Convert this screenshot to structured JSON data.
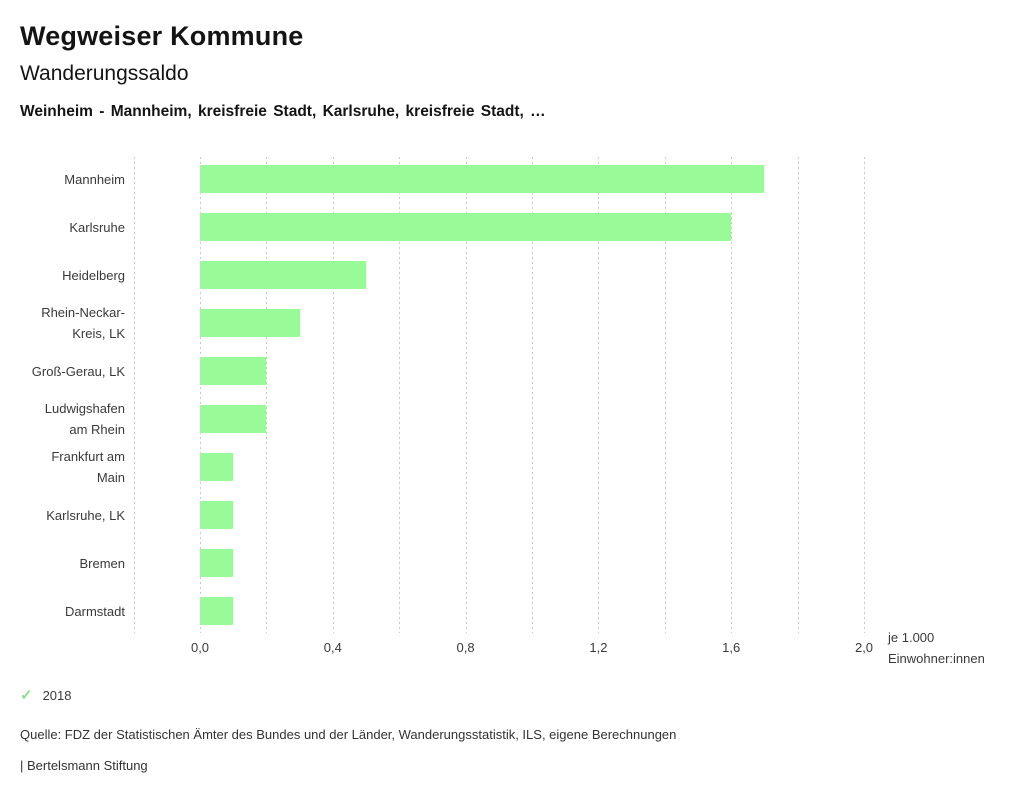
{
  "header": {
    "brand_title": "Wegweiser Kommune",
    "indicator_title": "Wanderungssaldo",
    "comparison_subtitle": "Weinheim - Mannheim, kreisfreie Stadt, Karlsruhe, kreisfreie Stadt, …"
  },
  "chart_data": {
    "type": "bar",
    "orientation": "horizontal",
    "title": "Wanderungssaldo",
    "categories": [
      "Mannheim",
      "Karlsruhe",
      "Heidelberg",
      "Rhein-Neckar-Kreis, LK",
      "Groß-Gerau, LK",
      "Ludwigshafen am Rhein",
      "Frankfurt am Main",
      "Karlsruhe, LK",
      "Bremen",
      "Darmstadt"
    ],
    "category_display_lines": [
      [
        "Mannheim"
      ],
      [
        "Karlsruhe"
      ],
      [
        "Heidelberg"
      ],
      [
        "Rhein-Neckar-",
        "Kreis, LK"
      ],
      [
        "Groß-Gerau, LK"
      ],
      [
        "Ludwigshafen",
        "am Rhein"
      ],
      [
        "Frankfurt am",
        "Main"
      ],
      [
        "Karlsruhe, LK"
      ],
      [
        "Bremen"
      ],
      [
        "Darmstadt"
      ]
    ],
    "values": [
      1.7,
      1.6,
      0.5,
      0.3,
      0.2,
      0.2,
      0.1,
      0.1,
      0.1,
      0.1
    ],
    "xlim": [
      -0.2,
      2.0
    ],
    "gridline_step": 0.2,
    "x_ticks": [
      {
        "value": 0.0,
        "label": "0,0"
      },
      {
        "value": 0.4,
        "label": "0,4"
      },
      {
        "value": 0.8,
        "label": "0,8"
      },
      {
        "value": 1.2,
        "label": "1,2"
      },
      {
        "value": 1.6,
        "label": "1,6"
      },
      {
        "value": 2.0,
        "label": "2,0"
      }
    ],
    "unit_label_lines": [
      "je 1.000",
      "Einwohner:innen"
    ],
    "grid": "vertical-dashed",
    "legend_position": "bottom-left"
  },
  "legend": {
    "year_label": "2018",
    "checked": true,
    "check_glyph": "✓"
  },
  "footer": {
    "source_text": "Quelle: FDZ der Statistischen Ämter des Bundes und der Länder, Wanderungsstatistik, ILS, eigene Berechnungen",
    "branding_text": "| Bertelsmann Stiftung"
  },
  "colors": {
    "bar": "#98fb98",
    "check": "#8ce18c",
    "gridline": "#c9c9c9",
    "text_primary": "#141414",
    "text_secondary": "#3a3a3a"
  }
}
